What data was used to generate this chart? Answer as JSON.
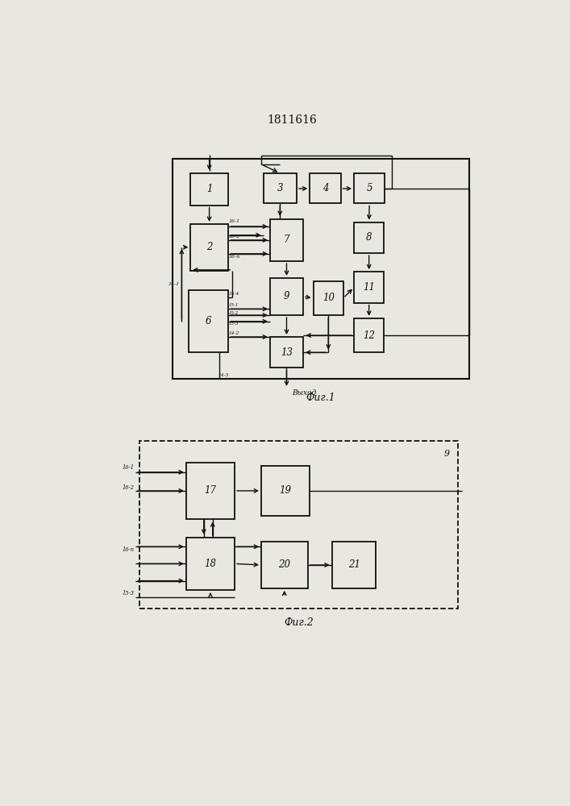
{
  "title": "1811616",
  "title_fontsize": 10,
  "fig1_label": "Фиг.1",
  "fig2_label": "Фиг.2",
  "bg": "#e8e8e0",
  "box_fill": "#e8e8e0",
  "box_edge": "#111111",
  "lc": "#111111",
  "fig1": {
    "outer": [
      0.23,
      0.545,
      0.67,
      0.355
    ],
    "blocks": {
      "1": [
        0.27,
        0.825,
        0.085,
        0.052
      ],
      "2": [
        0.27,
        0.72,
        0.085,
        0.075
      ],
      "3": [
        0.435,
        0.828,
        0.075,
        0.048
      ],
      "4": [
        0.54,
        0.828,
        0.07,
        0.048
      ],
      "5": [
        0.64,
        0.828,
        0.07,
        0.048
      ],
      "6": [
        0.265,
        0.588,
        0.09,
        0.1
      ],
      "7": [
        0.45,
        0.735,
        0.075,
        0.068
      ],
      "8": [
        0.64,
        0.748,
        0.068,
        0.05
      ],
      "9": [
        0.45,
        0.648,
        0.075,
        0.06
      ],
      "10": [
        0.548,
        0.648,
        0.068,
        0.055
      ],
      "11": [
        0.64,
        0.668,
        0.068,
        0.05
      ],
      "12": [
        0.64,
        0.588,
        0.068,
        0.055
      ],
      "13": [
        0.45,
        0.563,
        0.075,
        0.05
      ]
    }
  },
  "fig2": {
    "outer": [
      0.155,
      0.175,
      0.72,
      0.27
    ],
    "blocks": {
      "17": [
        0.26,
        0.32,
        0.11,
        0.09
      ],
      "18": [
        0.26,
        0.205,
        0.11,
        0.085
      ],
      "19": [
        0.43,
        0.325,
        0.11,
        0.08
      ],
      "20": [
        0.43,
        0.208,
        0.105,
        0.075
      ],
      "21": [
        0.59,
        0.208,
        0.1,
        0.075
      ]
    }
  }
}
